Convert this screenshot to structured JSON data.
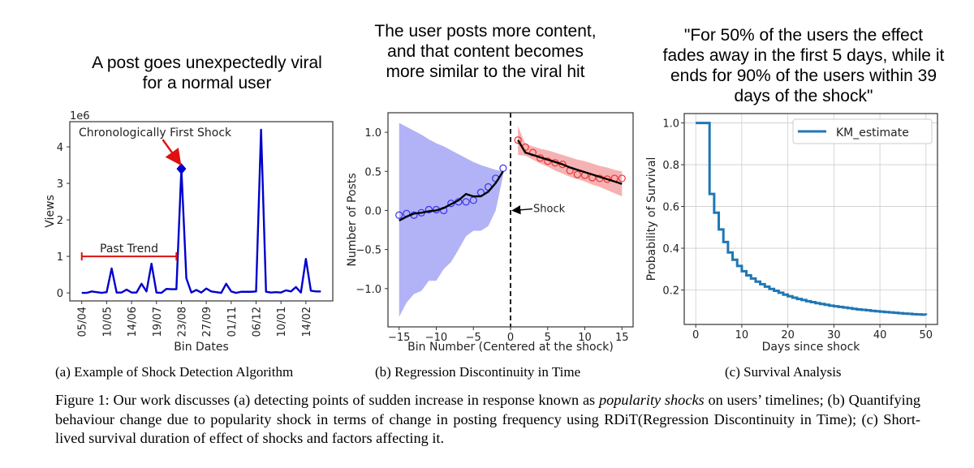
{
  "captions": {
    "a": "(a) Example of Shock Detection Algorithm",
    "b": "(b) Regression Discontinuity in Time",
    "c": "(c) Survival Analysis",
    "figure": {
      "pre": "Figure 1: Our work discusses (a) detecting points of sudden increase in response known as ",
      "italic": "popularity shocks",
      "post": " on users’ timelines; (b) Quantifying behaviour change due to popularity shock in terms of change in posting frequency using RDiT(Regression Discontinuity in Time); (c) Short-lived survival duration of effect of shocks and factors affecting it."
    }
  },
  "chart_data": [
    {
      "type": "line",
      "title": [
        "A post goes unexpectedly viral",
        "for a normal user"
      ],
      "xlabel": "Bin Dates",
      "ylabel": "Views",
      "y_offset_label": "1e6",
      "color": "#0000cc",
      "xtick_labels": [
        "05/04",
        "10/05",
        "14/06",
        "19/07",
        "23/08",
        "27/09",
        "01/11",
        "06/12",
        "10/01",
        "14/02"
      ],
      "xtick_every": 5,
      "yticks": [
        0,
        1,
        2,
        3,
        4
      ],
      "ylim": [
        -0.22,
        4.69
      ],
      "values": [
        0,
        0,
        0.04,
        0.02,
        0,
        0.02,
        0.67,
        0.01,
        0.01,
        0.09,
        0.01,
        0.01,
        0.25,
        0.04,
        0.8,
        0.01,
        0,
        0.11,
        0.1,
        0.1,
        3.4,
        0.4,
        0.01,
        0.08,
        0.01,
        0.12,
        0.04,
        0.02,
        0,
        0.25,
        0.04,
        0,
        0.03,
        0.03,
        0.03,
        0.04,
        4.47,
        0.03,
        0.01,
        0.02,
        0.01,
        0.07,
        0.04,
        0.16,
        0.01,
        0.93,
        0.06,
        0.04,
        0.04
      ],
      "annotations": {
        "shock_label": "Chronologically First Shock",
        "shock_index": 20,
        "trend_label": "Past Trend",
        "trend_range": [
          0,
          19
        ],
        "trend_value": 1.0,
        "annotation_color": "#dd1111"
      }
    },
    {
      "type": "scatter",
      "title": [
        "The user posts more content,",
        "and that content becomes",
        "more similar to the viral hit"
      ],
      "xlabel": "Bin Number (Centered at the shock)",
      "ylabel": "Number of Posts",
      "xlim": [
        -16.5,
        16.5
      ],
      "ylim": [
        -1.49,
        1.25
      ],
      "xticks": [
        -15,
        -10,
        -5,
        0,
        5,
        10,
        15
      ],
      "yticks": [
        -1.0,
        -0.5,
        0.0,
        0.5,
        1.0
      ],
      "shock_label": "Shock",
      "before": {
        "color": "#3333ee",
        "band_color": "#aaaaf5",
        "x": [
          -15,
          -14,
          -13,
          -12,
          -11,
          -10,
          -9,
          -8,
          -7,
          -6,
          -5,
          -4,
          -3,
          -2,
          -1
        ],
        "points": [
          -0.06,
          -0.04,
          -0.06,
          -0.03,
          0.01,
          0.01,
          0.0,
          0.09,
          0.11,
          0.11,
          0.13,
          0.23,
          0.3,
          0.41,
          0.54
        ],
        "fit": [
          -0.13,
          -0.08,
          -0.04,
          -0.03,
          -0.01,
          0.0,
          0.03,
          0.08,
          0.13,
          0.21,
          0.18,
          0.18,
          0.24,
          0.35,
          0.5
        ],
        "band_upper": [
          1.12,
          1.07,
          1.02,
          0.97,
          0.91,
          0.86,
          0.82,
          0.77,
          0.72,
          0.67,
          0.62,
          0.58,
          0.55,
          0.52,
          0.5
        ],
        "band_lower": [
          -1.36,
          -1.18,
          -1.07,
          -1.03,
          -0.9,
          -0.9,
          -0.75,
          -0.66,
          -0.5,
          -0.33,
          -0.26,
          -0.26,
          -0.2,
          0.0,
          0.45
        ]
      },
      "after": {
        "color": "#ee3333",
        "band_color": "#f5aaaa",
        "x": [
          1,
          2,
          3,
          4,
          5,
          6,
          7,
          8,
          9,
          10,
          11,
          12,
          13,
          14,
          15
        ],
        "points": [
          0.9,
          0.81,
          0.74,
          0.67,
          0.63,
          0.61,
          0.59,
          0.51,
          0.46,
          0.45,
          0.42,
          0.41,
          0.4,
          0.41,
          0.41
        ],
        "fit": [
          0.9,
          0.74,
          0.71,
          0.68,
          0.65,
          0.62,
          0.59,
          0.55,
          0.52,
          0.49,
          0.46,
          0.43,
          0.4,
          0.37,
          0.34
        ],
        "band_upper": [
          1.08,
          0.85,
          0.82,
          0.79,
          0.77,
          0.74,
          0.71,
          0.68,
          0.65,
          0.63,
          0.6,
          0.57,
          0.55,
          0.52,
          0.5
        ],
        "band_lower": [
          0.71,
          0.7,
          0.65,
          0.6,
          0.56,
          0.51,
          0.47,
          0.43,
          0.4,
          0.37,
          0.33,
          0.3,
          0.26,
          0.22,
          0.18
        ]
      }
    },
    {
      "type": "line",
      "step": true,
      "title": [
        "\"For 50% of the users the effect",
        "fades away in the first 5 days, while it",
        "ends for 90% of the users within 39",
        "days of the shock\""
      ],
      "xlabel": "Days since shock",
      "ylabel": "Probability of Survival",
      "xlim": [
        -2.5,
        52.5
      ],
      "ylim": [
        0.035,
        1.045
      ],
      "xticks": [
        0,
        10,
        20,
        30,
        40,
        50
      ],
      "yticks": [
        0.2,
        0.4,
        0.6,
        0.8,
        1.0
      ],
      "grid": true,
      "legend": "top-right",
      "color": "#1f77b4",
      "series": [
        {
          "name": "KM_estimate",
          "x": [
            0,
            1,
            2,
            3,
            4,
            5,
            6,
            7,
            8,
            9,
            10,
            11,
            12,
            13,
            14,
            15,
            16,
            17,
            18,
            19,
            20,
            21,
            22,
            23,
            24,
            25,
            26,
            27,
            28,
            29,
            30,
            31,
            32,
            33,
            34,
            35,
            36,
            37,
            38,
            39,
            40,
            41,
            42,
            43,
            44,
            45,
            46,
            47,
            48,
            49,
            50
          ],
          "values": [
            1.0,
            1.0,
            1.0,
            0.66,
            0.57,
            0.49,
            0.43,
            0.38,
            0.345,
            0.315,
            0.29,
            0.27,
            0.255,
            0.24,
            0.228,
            0.216,
            0.205,
            0.196,
            0.187,
            0.178,
            0.17,
            0.163,
            0.157,
            0.152,
            0.146,
            0.142,
            0.137,
            0.133,
            0.129,
            0.125,
            0.122,
            0.119,
            0.116,
            0.113,
            0.11,
            0.107,
            0.105,
            0.103,
            0.1,
            0.098,
            0.096,
            0.094,
            0.093,
            0.091,
            0.089,
            0.087,
            0.086,
            0.084,
            0.083,
            0.082,
            0.08
          ]
        }
      ]
    }
  ]
}
